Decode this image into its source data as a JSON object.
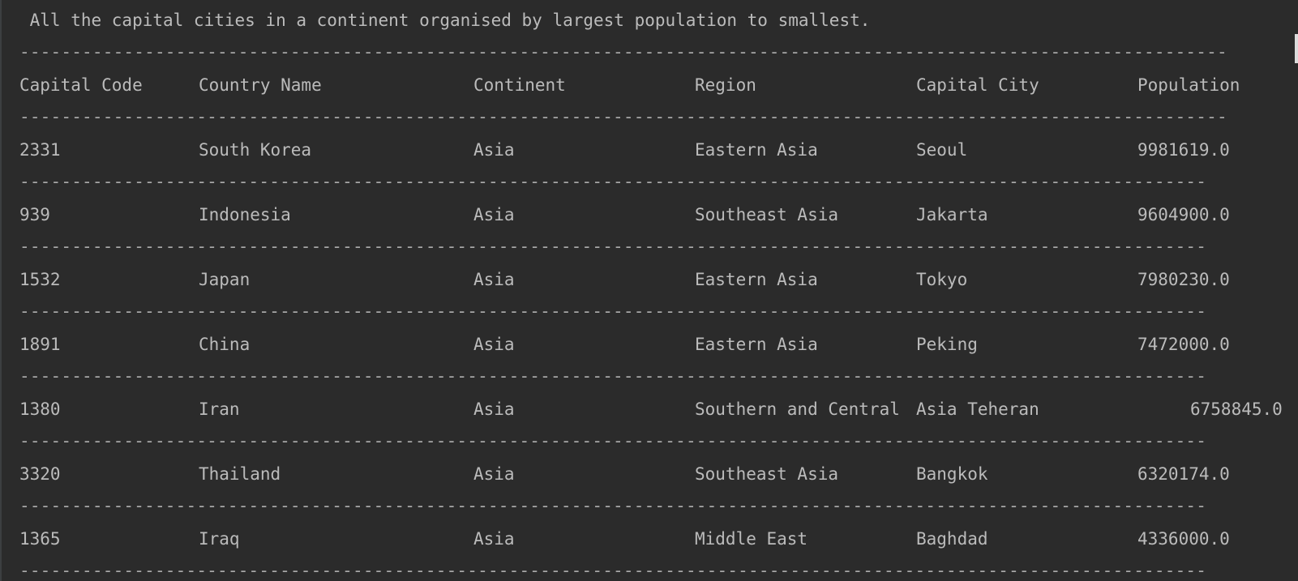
{
  "console": {
    "title": " All the capital cities in a continent organised by largest population to smallest.",
    "separator_wide": "--------------------------------------------------------------------------------------------------------------------",
    "separator_narrow": "-------------------------------------------------------------------------------------------------------------------"
  },
  "table": {
    "headers": {
      "code": "Capital Code",
      "country": "Country Name",
      "continent": "Continent",
      "region": "Region",
      "city": "Capital City",
      "population": "Population"
    },
    "rows": [
      {
        "code": "2331",
        "country": "South Korea",
        "continent": "Asia",
        "region": "Eastern Asia",
        "city": "Seoul",
        "population": "9981619.0"
      },
      {
        "code": "939",
        "country": "Indonesia",
        "continent": "Asia",
        "region": "Southeast Asia",
        "city": "Jakarta",
        "population": "9604900.0"
      },
      {
        "code": "1532",
        "country": "Japan",
        "continent": "Asia",
        "region": "Eastern Asia",
        "city": "Tokyo",
        "population": "7980230.0"
      },
      {
        "code": "1891",
        "country": "China",
        "continent": "Asia",
        "region": "Eastern Asia",
        "city": "Peking",
        "population": "7472000.0"
      },
      {
        "code": "1380",
        "country": "Iran",
        "continent": "Asia",
        "region": "Southern and Central",
        "city": "Asia Teheran",
        "population": "6758845.0"
      },
      {
        "code": "3320",
        "country": "Thailand",
        "continent": "Asia",
        "region": "Southeast Asia",
        "city": "Bangkok",
        "population": "6320174.0"
      },
      {
        "code": "1365",
        "country": "Iraq",
        "continent": "Asia",
        "region": "Middle East",
        "city": "Baghdad",
        "population": "4336000.0"
      }
    ]
  },
  "colors": {
    "background": "#2b2b2b",
    "text": "#bbbbbb"
  }
}
